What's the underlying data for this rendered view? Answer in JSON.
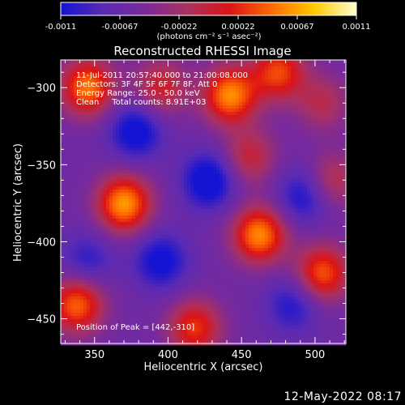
{
  "chart_data": {
    "type": "heatmap",
    "title": "Reconstructed RHESSI Image",
    "xlabel": "Heliocentric X (arcsec)",
    "ylabel": "Heliocentric Y (arcsec)",
    "xlim": [
      327,
      521
    ],
    "ylim": [
      -466,
      -282
    ],
    "x_ticks": [
      350,
      400,
      450,
      500
    ],
    "y_ticks": [
      -300,
      -350,
      -400,
      -450
    ],
    "colorbar": {
      "range": [
        -0.0011,
        0.0011
      ],
      "ticks": [
        "-0.0011",
        "-0.00067",
        "-0.00022",
        "0.00022",
        "0.00067",
        "0.0011"
      ],
      "colors": [
        "#1414d2",
        "#5a2ab4",
        "#7a2a9a",
        "#aa3060",
        "#dc1414",
        "#ff6a00",
        "#ffc800",
        "#ffffcc"
      ],
      "units_label": "(photons cm⁻² s⁻¹ asec⁻²)"
    },
    "annotations": [
      "11-Jul-2011 20:57:40.000 to 21:00:08.000",
      "Detectors: 3F 4F 5F 6F 7F 8F, Att 0",
      "Energy Range: 25.0 - 50.0 keV",
      "Clean     Total counts: 8.91E+03"
    ],
    "peak_label": "Position of Peak = [442,-310]",
    "sources": [
      {
        "x": 370,
        "y": -375,
        "amp": 1.0
      },
      {
        "x": 462,
        "y": -395,
        "amp": 0.95
      },
      {
        "x": 442,
        "y": -305,
        "amp": 0.95
      },
      {
        "x": 475,
        "y": -290,
        "amp": 0.75
      },
      {
        "x": 345,
        "y": -300,
        "amp": 0.9
      },
      {
        "x": 395,
        "y": -300,
        "amp": 0.55
      },
      {
        "x": 338,
        "y": -440,
        "amp": 0.85
      },
      {
        "x": 418,
        "y": -455,
        "amp": 0.7
      },
      {
        "x": 505,
        "y": -420,
        "amp": 0.8
      },
      {
        "x": 512,
        "y": -360,
        "amp": 0.45
      },
      {
        "x": 455,
        "y": -345,
        "amp": 0.5
      },
      {
        "x": 505,
        "y": -310,
        "amp": 0.4
      },
      {
        "x": 378,
        "y": -328,
        "amp": -0.55
      },
      {
        "x": 428,
        "y": -360,
        "amp": -0.6
      },
      {
        "x": 492,
        "y": -370,
        "amp": -0.45
      },
      {
        "x": 395,
        "y": -412,
        "amp": -0.5
      },
      {
        "x": 485,
        "y": -440,
        "amp": -0.4
      },
      {
        "x": 345,
        "y": -412,
        "amp": -0.35
      }
    ]
  },
  "footer": {
    "date": "12-May-2022 08:17"
  }
}
